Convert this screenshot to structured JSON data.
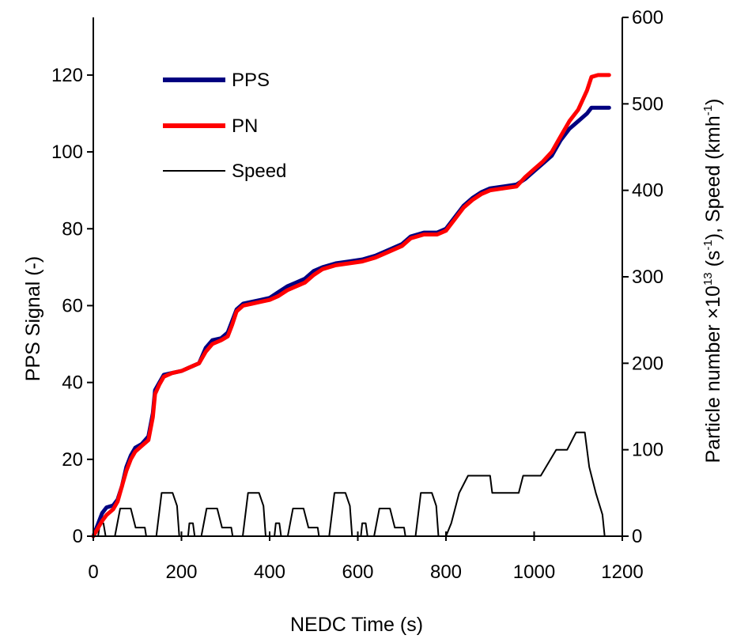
{
  "chart_data": {
    "type": "line",
    "title": "",
    "xlabel": "NEDC Time (s)",
    "ylabel_left": "PPS Signal (-)",
    "ylabel_right_parts": {
      "main": "Particle number ×10",
      "exp13": "13",
      "unit1_pre": " (s",
      "unit1_exp": "-1",
      "unit1_post": "), Speed (kmh",
      "unit2_exp": "-1",
      "unit2_post": ")"
    },
    "xlim": [
      0,
      1200
    ],
    "ylim_left": [
      0,
      135
    ],
    "ylim_right": [
      0,
      600
    ],
    "x_ticks": [
      "0",
      "200",
      "400",
      "600",
      "800",
      "1000",
      "1200"
    ],
    "x_tick_values": [
      0,
      200,
      400,
      600,
      800,
      1000,
      1200
    ],
    "y_left_ticks": [
      "0",
      "20",
      "40",
      "60",
      "80",
      "100",
      "120"
    ],
    "y_left_tick_values": [
      0,
      20,
      40,
      60,
      80,
      100,
      120
    ],
    "y_right_ticks": [
      "0",
      "100",
      "200",
      "300",
      "400",
      "500",
      "600"
    ],
    "y_right_tick_values": [
      0,
      100,
      200,
      300,
      400,
      500,
      600
    ],
    "grid": false,
    "legend_position": "top-left",
    "series": [
      {
        "name": "PPS",
        "axis": "left",
        "color": "#000080",
        "points": [
          [
            0,
            0
          ],
          [
            10,
            3
          ],
          [
            20,
            6
          ],
          [
            30,
            7.5
          ],
          [
            45,
            8
          ],
          [
            55,
            9.5
          ],
          [
            65,
            13
          ],
          [
            75,
            18
          ],
          [
            85,
            21
          ],
          [
            95,
            23
          ],
          [
            110,
            24
          ],
          [
            125,
            26
          ],
          [
            135,
            32
          ],
          [
            140,
            38
          ],
          [
            150,
            40
          ],
          [
            160,
            42
          ],
          [
            180,
            42.5
          ],
          [
            200,
            43
          ],
          [
            220,
            44
          ],
          [
            240,
            45
          ],
          [
            255,
            49
          ],
          [
            270,
            51
          ],
          [
            290,
            51.5
          ],
          [
            305,
            53
          ],
          [
            315,
            56
          ],
          [
            325,
            59
          ],
          [
            340,
            60.5
          ],
          [
            360,
            61
          ],
          [
            380,
            61.5
          ],
          [
            400,
            62
          ],
          [
            420,
            63.5
          ],
          [
            440,
            65
          ],
          [
            460,
            66
          ],
          [
            480,
            67
          ],
          [
            500,
            69
          ],
          [
            520,
            70
          ],
          [
            550,
            71
          ],
          [
            580,
            71.5
          ],
          [
            610,
            72
          ],
          [
            640,
            73
          ],
          [
            670,
            74.5
          ],
          [
            700,
            76
          ],
          [
            720,
            78
          ],
          [
            750,
            79
          ],
          [
            780,
            79
          ],
          [
            800,
            80
          ],
          [
            820,
            83
          ],
          [
            840,
            86
          ],
          [
            860,
            88
          ],
          [
            880,
            89.5
          ],
          [
            900,
            90.5
          ],
          [
            930,
            91
          ],
          [
            960,
            91.5
          ],
          [
            980,
            93
          ],
          [
            1000,
            95
          ],
          [
            1020,
            97
          ],
          [
            1040,
            99
          ],
          [
            1060,
            103
          ],
          [
            1080,
            106
          ],
          [
            1100,
            108
          ],
          [
            1120,
            110
          ],
          [
            1130,
            111.5
          ],
          [
            1170,
            111.5
          ]
        ]
      },
      {
        "name": "PN",
        "axis": "left",
        "color": "#ff0000",
        "points": [
          [
            0,
            0
          ],
          [
            10,
            2
          ],
          [
            20,
            4
          ],
          [
            30,
            5.5
          ],
          [
            45,
            7
          ],
          [
            55,
            9
          ],
          [
            65,
            13
          ],
          [
            75,
            17
          ],
          [
            85,
            20
          ],
          [
            95,
            22
          ],
          [
            110,
            23.5
          ],
          [
            125,
            25
          ],
          [
            135,
            31
          ],
          [
            140,
            37
          ],
          [
            150,
            39.5
          ],
          [
            160,
            41.5
          ],
          [
            180,
            42.5
          ],
          [
            200,
            43
          ],
          [
            220,
            44
          ],
          [
            240,
            45
          ],
          [
            255,
            48
          ],
          [
            270,
            50
          ],
          [
            290,
            51
          ],
          [
            305,
            52
          ],
          [
            315,
            55
          ],
          [
            325,
            58.5
          ],
          [
            340,
            60
          ],
          [
            360,
            60.5
          ],
          [
            380,
            61
          ],
          [
            400,
            61.5
          ],
          [
            420,
            62.5
          ],
          [
            440,
            64
          ],
          [
            460,
            65
          ],
          [
            480,
            66
          ],
          [
            500,
            68
          ],
          [
            520,
            69.5
          ],
          [
            550,
            70.5
          ],
          [
            580,
            71
          ],
          [
            610,
            71.5
          ],
          [
            640,
            72.5
          ],
          [
            670,
            74
          ],
          [
            700,
            75.5
          ],
          [
            720,
            77.5
          ],
          [
            750,
            78.5
          ],
          [
            780,
            78.5
          ],
          [
            800,
            79.5
          ],
          [
            820,
            82.5
          ],
          [
            840,
            85.5
          ],
          [
            860,
            87.5
          ],
          [
            880,
            89
          ],
          [
            900,
            90
          ],
          [
            930,
            90.5
          ],
          [
            960,
            91
          ],
          [
            980,
            93.5
          ],
          [
            1000,
            95.5
          ],
          [
            1020,
            97.5
          ],
          [
            1040,
            100
          ],
          [
            1060,
            104
          ],
          [
            1080,
            108
          ],
          [
            1100,
            111
          ],
          [
            1120,
            116
          ],
          [
            1130,
            119.5
          ],
          [
            1145,
            120
          ],
          [
            1170,
            120
          ]
        ]
      },
      {
        "name": "Speed",
        "axis": "right",
        "color": "#000000",
        "points": [
          [
            0,
            0
          ],
          [
            11,
            0
          ],
          [
            15,
            15
          ],
          [
            23,
            15
          ],
          [
            28,
            0
          ],
          [
            49,
            0
          ],
          [
            61,
            32
          ],
          [
            85,
            32
          ],
          [
            96,
            10
          ],
          [
            117,
            10
          ],
          [
            120,
            0
          ],
          [
            143,
            0
          ],
          [
            155,
            50
          ],
          [
            180,
            50
          ],
          [
            190,
            35
          ],
          [
            195,
            0
          ],
          [
            215,
            0
          ],
          [
            218,
            15
          ],
          [
            226,
            15
          ],
          [
            230,
            0
          ],
          [
            245,
            0
          ],
          [
            257,
            32
          ],
          [
            281,
            32
          ],
          [
            292,
            10
          ],
          [
            313,
            10
          ],
          [
            316,
            0
          ],
          [
            339,
            0
          ],
          [
            351,
            50
          ],
          [
            376,
            50
          ],
          [
            386,
            35
          ],
          [
            391,
            0
          ],
          [
            411,
            0
          ],
          [
            414,
            15
          ],
          [
            422,
            15
          ],
          [
            426,
            0
          ],
          [
            441,
            0
          ],
          [
            453,
            32
          ],
          [
            477,
            32
          ],
          [
            488,
            10
          ],
          [
            509,
            10
          ],
          [
            512,
            0
          ],
          [
            535,
            0
          ],
          [
            547,
            50
          ],
          [
            572,
            50
          ],
          [
            582,
            35
          ],
          [
            587,
            0
          ],
          [
            607,
            0
          ],
          [
            610,
            15
          ],
          [
            618,
            15
          ],
          [
            622,
            0
          ],
          [
            637,
            0
          ],
          [
            649,
            32
          ],
          [
            673,
            32
          ],
          [
            684,
            10
          ],
          [
            705,
            10
          ],
          [
            708,
            0
          ],
          [
            731,
            0
          ],
          [
            743,
            50
          ],
          [
            768,
            50
          ],
          [
            778,
            35
          ],
          [
            783,
            0
          ],
          [
            800,
            0
          ],
          [
            812,
            15
          ],
          [
            830,
            50
          ],
          [
            850,
            70
          ],
          [
            900,
            70
          ],
          [
            905,
            50
          ],
          [
            965,
            50
          ],
          [
            975,
            70
          ],
          [
            1015,
            70
          ],
          [
            1050,
            100
          ],
          [
            1075,
            100
          ],
          [
            1095,
            120
          ],
          [
            1115,
            120
          ],
          [
            1125,
            80
          ],
          [
            1140,
            50
          ],
          [
            1155,
            25
          ],
          [
            1160,
            0
          ],
          [
            1170,
            0
          ]
        ]
      }
    ]
  }
}
